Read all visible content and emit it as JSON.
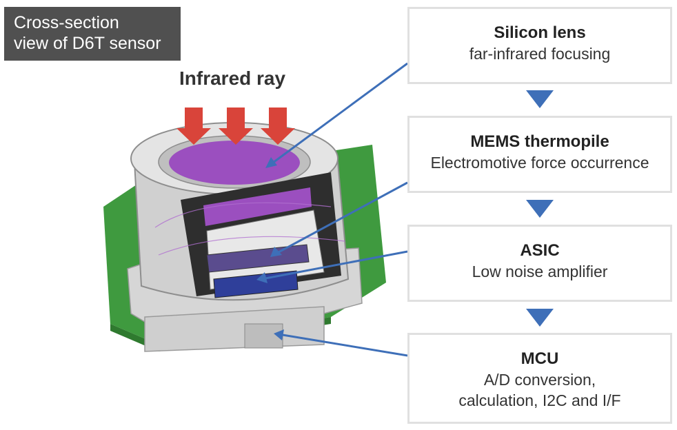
{
  "title": {
    "line1": "Cross-section",
    "line2": "view of D6T sensor"
  },
  "infrared_label": "Infrared ray",
  "stages": [
    {
      "title": "Silicon lens",
      "subtitle": "far-infrared focusing"
    },
    {
      "title": "MEMS thermopile",
      "subtitle": "Electromotive force occurrence"
    },
    {
      "title": "ASIC",
      "subtitle": "Low noise amplifier"
    },
    {
      "title": "MCU",
      "subtitle": "A/D conversion,",
      "subtitle2": "calculation, I2C and I/F"
    }
  ],
  "colors": {
    "arrow_red": "#d9443a",
    "pointer_blue": "#3e6fb8",
    "lens_purple": "#9b4fbf",
    "pcb_green": "#3f9a3f",
    "housing_gray": "#cfcfcf",
    "badge_bg": "#505050"
  }
}
